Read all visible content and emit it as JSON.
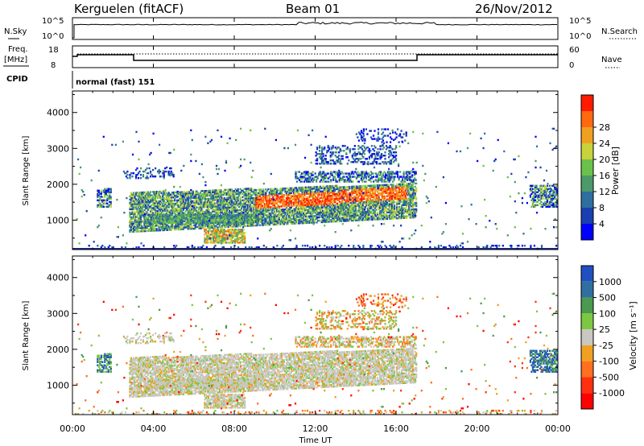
{
  "header": {
    "radar": "Kerguelen (fitACF)",
    "beam": "Beam 01",
    "date": "26/Nov/2012"
  },
  "panel_labels": {
    "nsky": "N.Sky",
    "nsearch": "N.Search",
    "freq_line1": "Freq.",
    "freq_line2": "[MHz]",
    "nave": "Nave",
    "cpid": "CPID",
    "cpid_value": "normal (fast) 151"
  },
  "small_axes": {
    "noise_ticks": [
      "10^5",
      "10^0"
    ],
    "freq_ticks": [
      "18",
      "8"
    ],
    "nave_ticks": [
      "60",
      "0"
    ]
  },
  "chart_data": [
    {
      "type": "heatmap",
      "name": "power",
      "ylabel": "Slant Range [km]",
      "xlabel": "",
      "ylim": [
        180,
        4600
      ],
      "yticks": [
        1000,
        2000,
        3000,
        4000
      ],
      "colorbar": {
        "label": "Power [dB]",
        "ticks": [
          "4",
          "8",
          "12",
          "16",
          "20",
          "24",
          "28"
        ],
        "colors": [
          "#0000ff",
          "#1a3fb0",
          "#2e6fa0",
          "#4c9a6a",
          "#6bc24a",
          "#c8d23a",
          "#f0a020",
          "#ff6a10",
          "#ff1a00"
        ]
      }
    },
    {
      "type": "heatmap",
      "name": "velocity",
      "ylabel": "Slant Range [km]",
      "xlabel": "Time UT",
      "ylim": [
        180,
        4600
      ],
      "yticks": [
        1000,
        2000,
        3000,
        4000
      ],
      "xticks": [
        "00:00",
        "04:00",
        "08:00",
        "12:00",
        "16:00",
        "20:00",
        "00:00"
      ],
      "colorbar": {
        "label": "Velocity [m s⁻¹]",
        "ticks": [
          "1000",
          "500",
          "100",
          "25",
          "-25",
          "-100",
          "-500",
          "-1000"
        ],
        "colors": [
          "#2050c0",
          "#3070a0",
          "#4a9a50",
          "#7cc840",
          "#c8c8c0",
          "#f0a020",
          "#ff7020",
          "#ff3010",
          "#ff0000"
        ]
      }
    }
  ]
}
